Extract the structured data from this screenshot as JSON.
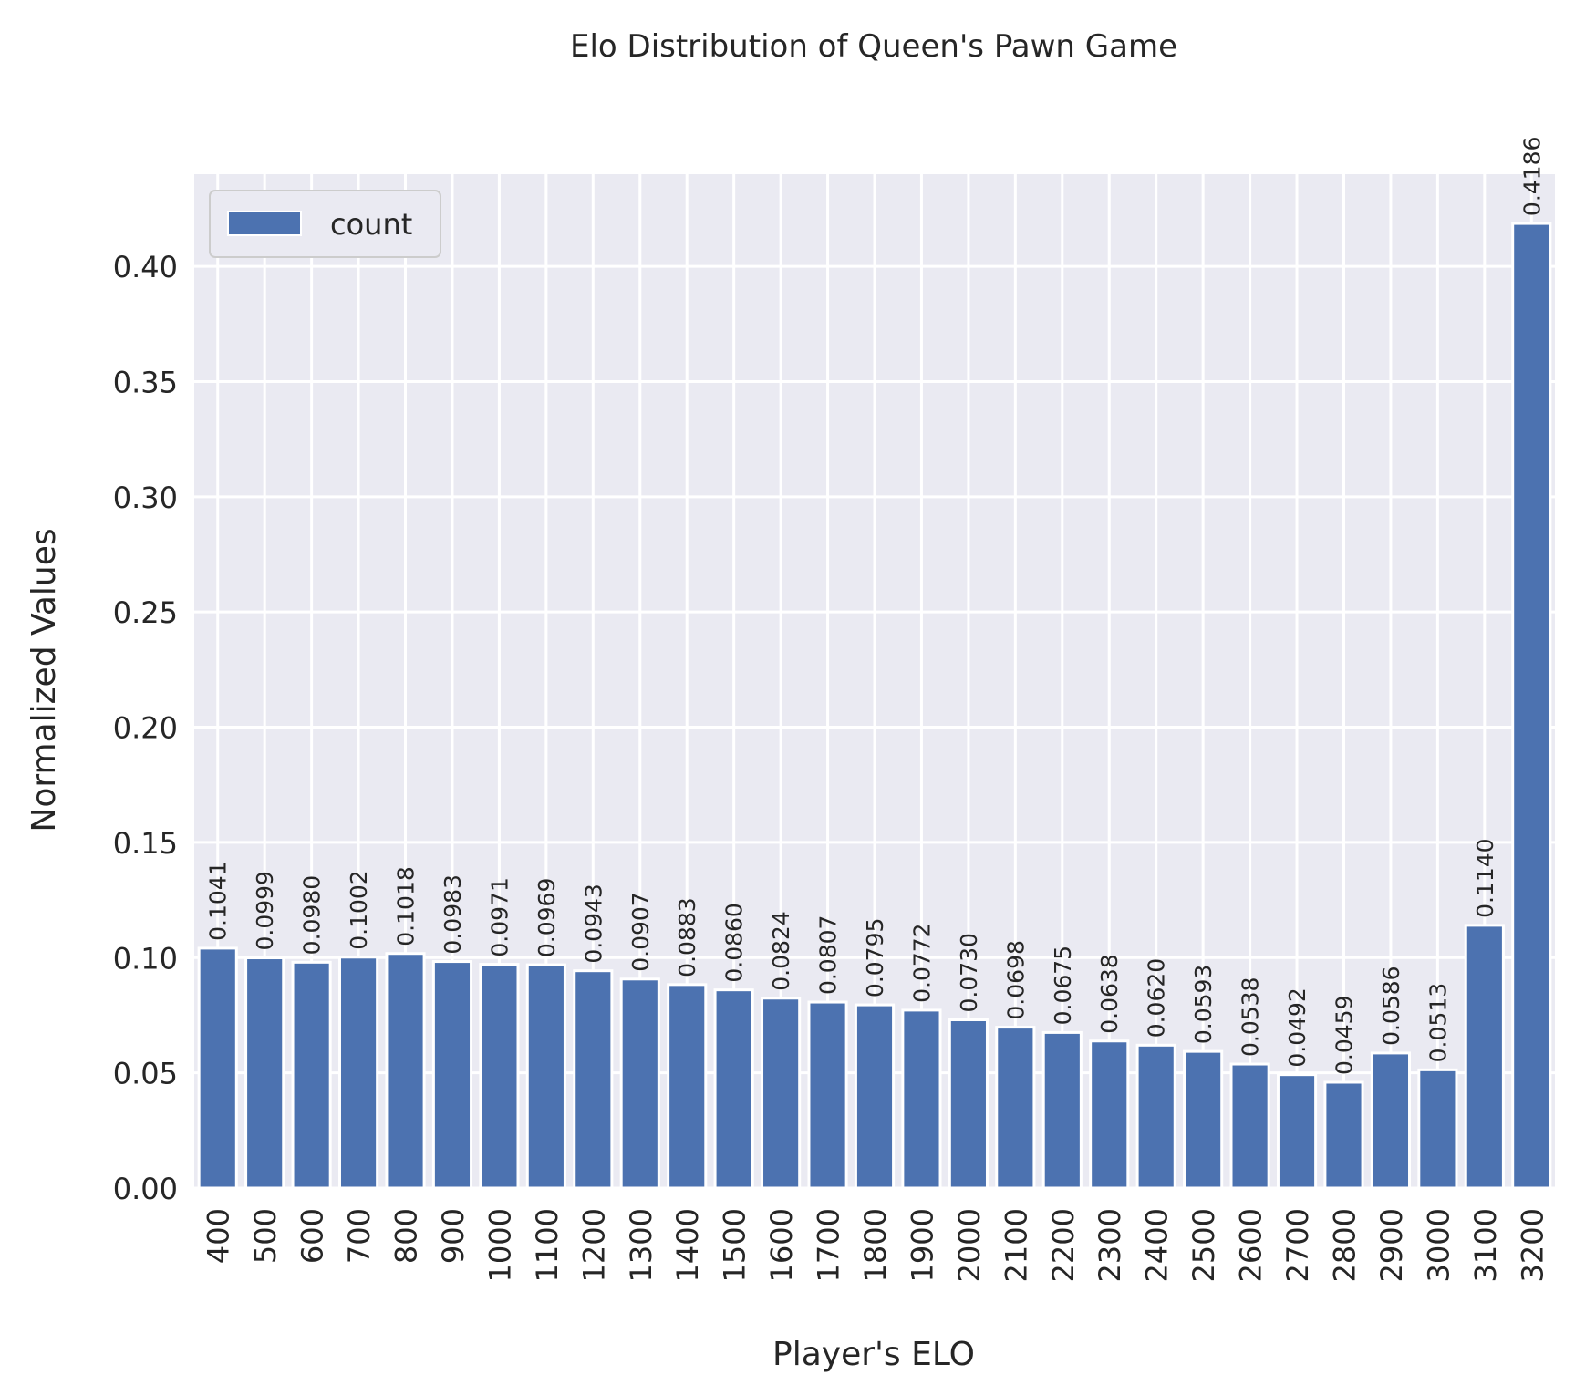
{
  "chart_data": {
    "type": "bar",
    "title": "Elo Distribution of Queen's Pawn Game",
    "xlabel": "Player's ELO",
    "ylabel": "Normalized Values",
    "categories": [
      "400",
      "500",
      "600",
      "700",
      "800",
      "900",
      "1000",
      "1100",
      "1200",
      "1300",
      "1400",
      "1500",
      "1600",
      "1700",
      "1800",
      "1900",
      "2000",
      "2100",
      "2200",
      "2300",
      "2400",
      "2500",
      "2600",
      "2700",
      "2800",
      "2900",
      "3000",
      "3100",
      "3200"
    ],
    "series": [
      {
        "name": "count",
        "values": [
          0.1041,
          0.0999,
          0.098,
          0.1002,
          0.1018,
          0.0983,
          0.0971,
          0.0969,
          0.0943,
          0.0907,
          0.0883,
          0.086,
          0.0824,
          0.0807,
          0.0795,
          0.0772,
          0.073,
          0.0698,
          0.0675,
          0.0638,
          0.062,
          0.0593,
          0.0538,
          0.0492,
          0.0459,
          0.0586,
          0.0513,
          0.114,
          0.4186
        ],
        "labels": [
          "0.1041",
          "0.0999",
          "0.0980",
          "0.1002",
          "0.1018",
          "0.0983",
          "0.0971",
          "0.0969",
          "0.0943",
          "0.0907",
          "0.0883",
          "0.0860",
          "0.0824",
          "0.0807",
          "0.0795",
          "0.0772",
          "0.0730",
          "0.0698",
          "0.0675",
          "0.0638",
          "0.0620",
          "0.0593",
          "0.0538",
          "0.0492",
          "0.0459",
          "0.0586",
          "0.0513",
          "0.1140",
          "0.4186"
        ],
        "color": "#4c72b0"
      }
    ],
    "yticks": [
      "0.00",
      "0.05",
      "0.10",
      "0.15",
      "0.20",
      "0.25",
      "0.30",
      "0.35",
      "0.40"
    ],
    "ylim": [
      0,
      0.44
    ],
    "grid": true,
    "legend": "top-left",
    "colors": {
      "background": "#eaeaf2",
      "grid": "#ffffff",
      "text": "#262626"
    }
  }
}
